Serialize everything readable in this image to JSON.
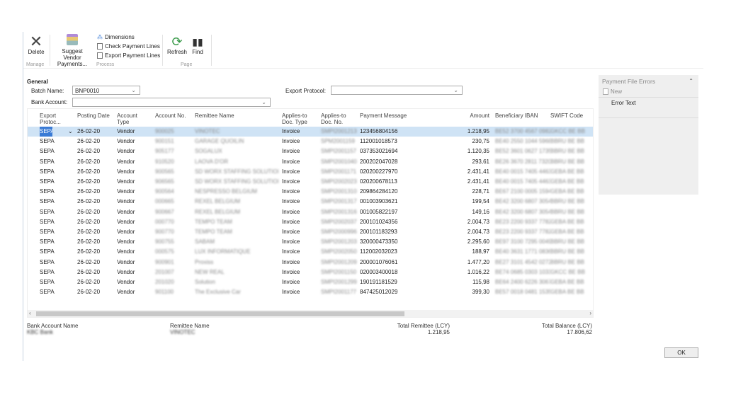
{
  "ribbon": {
    "delete": "Delete",
    "suggest": "Suggest Vendor Payments...",
    "dimensions": "Dimensions",
    "check": "Check Payment Lines",
    "export": "Export Payment Lines",
    "refresh": "Refresh",
    "find": "Find",
    "groups": {
      "manage": "Manage",
      "process": "Process",
      "page": "Page"
    }
  },
  "general": {
    "title": "General",
    "batch_label": "Batch Name:",
    "batch_value": "BNP0010",
    "bank_label": "Bank Account:",
    "bank_value": "",
    "export_label": "Export Protocol:",
    "export_value": ""
  },
  "columns": [
    "Export Protoc...",
    "Posting Date",
    "Account Type",
    "Account No.",
    "Remittee Name",
    "Applies-to Doc. Type",
    "Applies-to Doc. No.",
    "Payment Message",
    "Amount",
    "Beneficiary IBAN",
    "SWIFT Code"
  ],
  "rows": [
    [
      "SEPA",
      "26-02-20",
      "Vendor",
      "900025",
      "VINOTEC",
      "Invoice",
      "SMPI2001213",
      "123456804156",
      "1.218,95",
      "BE52 3700 4567 0982",
      "GKCC BE BB"
    ],
    [
      "SEPA",
      "26-02-20",
      "Vendor",
      "900151",
      "GARAGE QUOILIN",
      "Invoice",
      "SPM2001159",
      "112001018573",
      "230,75",
      "BE40 2550 1044 5968",
      "BBRU BE BB"
    ],
    [
      "SEPA",
      "26-02-20",
      "Vendor",
      "905177",
      "SOGALUX",
      "Invoice",
      "SMPI2001157",
      "037353021694",
      "1.120,35",
      "BE52 3601 0627 1735",
      "BBRU BE BB"
    ],
    [
      "SEPA",
      "26-02-20",
      "Vendor",
      "910520",
      "LAOVA D'OR",
      "Invoice",
      "SMPI2001040",
      "200202047028",
      "293,61",
      "BE26 3670 2811 7320",
      "BBRU BE BB"
    ],
    [
      "SEPA",
      "26-02-20",
      "Vendor",
      "900565",
      "SD WORX STAFFING SOLUTIONS",
      "Invoice",
      "SMPI2001171",
      "020200227970",
      "2.431,41",
      "BE40 0015 7405 4463",
      "GEBA BE BB"
    ],
    [
      "SEPA",
      "26-02-20",
      "Vendor",
      "906565",
      "SD WORX STAFFING SOLUTIONS",
      "Invoice",
      "SMPI2002023",
      "020200678113",
      "2.431,41",
      "BE40 0015 7405 4463",
      "GEBA BE BB"
    ],
    [
      "SEPA",
      "26-02-20",
      "Vendor",
      "900564",
      "NESPRESSO BELGIUM",
      "Invoice",
      "SMPI2001310",
      "209864284120",
      "228,71",
      "BE67 2100 0005 1594",
      "GEBA BE BB"
    ],
    [
      "SEPA",
      "26-02-20",
      "Vendor",
      "000665",
      "REXEL BELGIUM",
      "Invoice",
      "SMPI2001317",
      "001003903621",
      "199,54",
      "BE42 3200 6807 3054",
      "BBRU BE BB"
    ],
    [
      "SEPA",
      "26-02-20",
      "Vendor",
      "900667",
      "REXEL BELGIUM",
      "Invoice",
      "SMPI2001316",
      "001005822197",
      "149,16",
      "BE42 3200 6807 3054",
      "BBRU BE BB"
    ],
    [
      "SEPA",
      "26-02-20",
      "Vendor",
      "000770",
      "TEMPO TEAM",
      "Invoice",
      "SMPI2002037",
      "200101024356",
      "2.004,73",
      "BE23 2200 9337 7782",
      "GEBA BE BB"
    ],
    [
      "SEPA",
      "26-02-20",
      "Vendor",
      "900770",
      "TEMPO TEAM",
      "Invoice",
      "SMPI2000996",
      "200101183293",
      "2.004,73",
      "BE23 2200 9337 7782",
      "GEBA BE BB"
    ],
    [
      "SEPA",
      "26-02-20",
      "Vendor",
      "900755",
      "SABAM",
      "Invoice",
      "SMPI2001203",
      "320000473350",
      "2.295,60",
      "BE97 3100 7295 0049",
      "BBRU BE BB"
    ],
    [
      "SEPA",
      "26-02-20",
      "Vendor",
      "000575",
      "LUX INFORMATIQUE",
      "Invoice",
      "SMPI2002050",
      "112002032023",
      "188,97",
      "BE40 3631 1771 0836",
      "BBRU BE BB"
    ],
    [
      "SEPA",
      "26-02-20",
      "Vendor",
      "900901",
      "Proxiss",
      "Invoice",
      "SMPI2001209",
      "200001076061",
      "1.477,20",
      "BE27 3101 4542 0272",
      "BBRU BE BB"
    ],
    [
      "SEPA",
      "26-02-20",
      "Vendor",
      "201007",
      "NEW REAL",
      "Invoice",
      "SMPI2001150",
      "020003400018",
      "1.016,22",
      "BE74 0685 0303 1033",
      "GKCC BE BB"
    ],
    [
      "SEPA",
      "26-02-20",
      "Vendor",
      "201020",
      "Solution",
      "Invoice",
      "SMPI2001299",
      "190191181529",
      "115,98",
      "BE64 2400 6226 3067",
      "GEBA BE BB"
    ],
    [
      "SEPA",
      "26-02-20",
      "Vendor",
      "901100",
      "The Exclusive Car",
      "Invoice",
      "SMPI2001177",
      "847425012029",
      "399,30",
      "BE57 0018 0481 1535",
      "GEBA BE BB"
    ]
  ],
  "footer": {
    "bank_account_name_label": "Bank Account Name",
    "bank_account_name": "KBC Bank",
    "remittee_label": "Remittee Name",
    "remittee": "VINOTEC",
    "total_remittee_label": "Total Remittee (LCY)",
    "total_remittee": "1.218,95",
    "total_balance_label": "Total Balance (LCY)",
    "total_balance": "17.806,62"
  },
  "panel": {
    "title": "Payment File Errors",
    "new": "New",
    "col": "Error Text"
  },
  "ok": "OK",
  "colors": {
    "selection": "#cfe3f5",
    "refresh": "#3a9a4a"
  }
}
